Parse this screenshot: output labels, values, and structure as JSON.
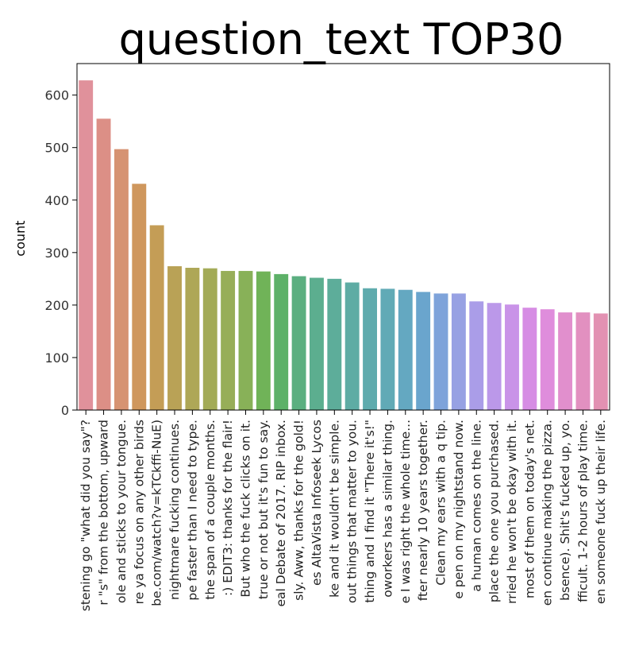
{
  "chart_data": {
    "type": "bar",
    "title": "question_text TOP30",
    "xlabel": "",
    "ylabel": "count",
    "ylim": [
      0,
      660
    ],
    "yticks": [
      0,
      100,
      200,
      300,
      400,
      500,
      600
    ],
    "grid": false,
    "categories": [
      "stening go \"what did you say\"?",
      "r \"s\" from the bottom, upward",
      "ole and sticks to your tongue.",
      "re ya focus on any other birds",
      "be.com/watch?v=kTCkffi-NuE)",
      "nightmare fucking continues.",
      "pe faster than I need to type.",
      "the span of a couple months.",
      ":)  EDIT3: thanks for the flair!",
      "But who the fuck clicks on it.",
      "true or not but it's fun to say.",
      "eal Debate of 2017. RIP inbox.",
      "sly.  Aww, thanks for the gold!",
      "es  AltaVista  Infoseek  Lycos",
      "ke and it wouldn't be simple.",
      "out things that matter to you.",
      "thing and I find it \"There it's!\"",
      "oworkers has a similar thing.",
      "e I was right the whole time...",
      "fter nearly 10 years together.",
      "Clean my ears with a q tip.",
      "e pen on my nightstand now.",
      "a human comes on the line.",
      "place the one you purchased.",
      "rried he won't be okay with it.",
      "most of them on today's net.",
      "en continue making the pizza.",
      "bsence).  Shit's fucked up, yo.",
      "fficult. 1-2 hours of play time.",
      "en someone fuck up their life."
    ],
    "values": [
      628,
      555,
      497,
      431,
      352,
      274,
      271,
      270,
      265,
      265,
      264,
      259,
      255,
      252,
      250,
      243,
      232,
      231,
      229,
      225,
      222,
      222,
      207,
      204,
      201,
      195,
      192,
      186,
      186,
      184
    ],
    "colors": [
      "#e0919b",
      "#dc8f86",
      "#d69372",
      "#cf975d",
      "#c49d56",
      "#b9a256",
      "#aea757",
      "#a3ab57",
      "#97ae58",
      "#88b158",
      "#70b358",
      "#5db168",
      "#5baf80",
      "#5cae8f",
      "#5dad9a",
      "#5eaca4",
      "#5fabad",
      "#61aab6",
      "#64a8c1",
      "#6aa5cd",
      "#7ea3da",
      "#97a1e3",
      "#aa9de8",
      "#bb98e9",
      "#c993e8",
      "#d68de4",
      "#df8ddc",
      "#e18fcd",
      "#e290c0",
      "#e291b2"
    ]
  }
}
